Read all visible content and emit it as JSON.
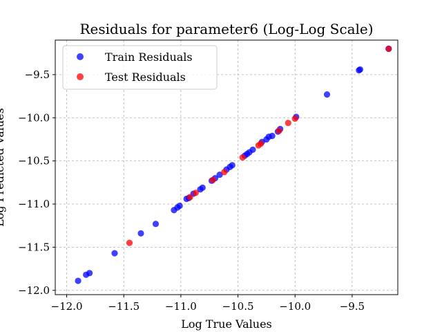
{
  "chart_data": {
    "type": "scatter",
    "title": "Residuals for parameter6 (Log-Log Scale)",
    "xlabel": "Log True Values",
    "ylabel": "Log Predicted Values",
    "xlim": [
      -12.1,
      -9.1
    ],
    "ylim": [
      -12.05,
      -9.1
    ],
    "xticks": [
      -12.0,
      -11.5,
      -11.0,
      -10.5,
      -10.0,
      -9.5
    ],
    "xtick_labels": [
      "−12.0",
      "−11.5",
      "−11.0",
      "−10.5",
      "−10.0",
      "−9.5"
    ],
    "yticks": [
      -12.0,
      -11.5,
      -11.0,
      -10.5,
      -10.0,
      -9.5
    ],
    "ytick_labels": [
      "−12.0",
      "−11.5",
      "−11.0",
      "−10.5",
      "−10.0",
      "−9.5"
    ],
    "grid": true,
    "legend_position": "top-left",
    "series": [
      {
        "name": "Train Residuals",
        "color": "#0000ff",
        "points": [
          [
            -11.9,
            -11.89
          ],
          [
            -11.83,
            -11.82
          ],
          [
            -11.8,
            -11.8
          ],
          [
            -11.58,
            -11.57
          ],
          [
            -11.35,
            -11.34
          ],
          [
            -11.22,
            -11.23
          ],
          [
            -11.06,
            -11.07
          ],
          [
            -11.03,
            -11.04
          ],
          [
            -11.01,
            -11.02
          ],
          [
            -10.95,
            -10.94
          ],
          [
            -10.93,
            -10.93
          ],
          [
            -10.89,
            -10.88
          ],
          [
            -10.83,
            -10.83
          ],
          [
            -10.81,
            -10.81
          ],
          [
            -10.73,
            -10.73
          ],
          [
            -10.7,
            -10.7
          ],
          [
            -10.66,
            -10.66
          ],
          [
            -10.6,
            -10.6
          ],
          [
            -10.57,
            -10.57
          ],
          [
            -10.55,
            -10.55
          ],
          [
            -10.44,
            -10.44
          ],
          [
            -10.42,
            -10.42
          ],
          [
            -10.4,
            -10.4
          ],
          [
            -10.37,
            -10.37
          ],
          [
            -10.29,
            -10.28
          ],
          [
            -10.25,
            -10.25
          ],
          [
            -10.23,
            -10.22
          ],
          [
            -10.2,
            -10.21
          ],
          [
            -10.15,
            -10.16
          ],
          [
            -10.13,
            -10.13
          ],
          [
            -9.99,
            -9.99
          ],
          [
            -9.72,
            -9.73
          ],
          [
            -9.44,
            -9.45
          ],
          [
            -9.43,
            -9.44
          ],
          [
            -9.18,
            -9.2
          ]
        ]
      },
      {
        "name": "Test Residuals",
        "color": "#ff0000",
        "points": [
          [
            -11.45,
            -11.45
          ],
          [
            -10.92,
            -10.92
          ],
          [
            -10.87,
            -10.87
          ],
          [
            -10.72,
            -10.72
          ],
          [
            -10.62,
            -10.63
          ],
          [
            -10.46,
            -10.46
          ],
          [
            -10.32,
            -10.32
          ],
          [
            -10.3,
            -10.3
          ],
          [
            -10.14,
            -10.15
          ],
          [
            -10.06,
            -10.06
          ],
          [
            -10.0,
            -10.01
          ],
          [
            -9.18,
            -9.2
          ]
        ]
      }
    ]
  }
}
